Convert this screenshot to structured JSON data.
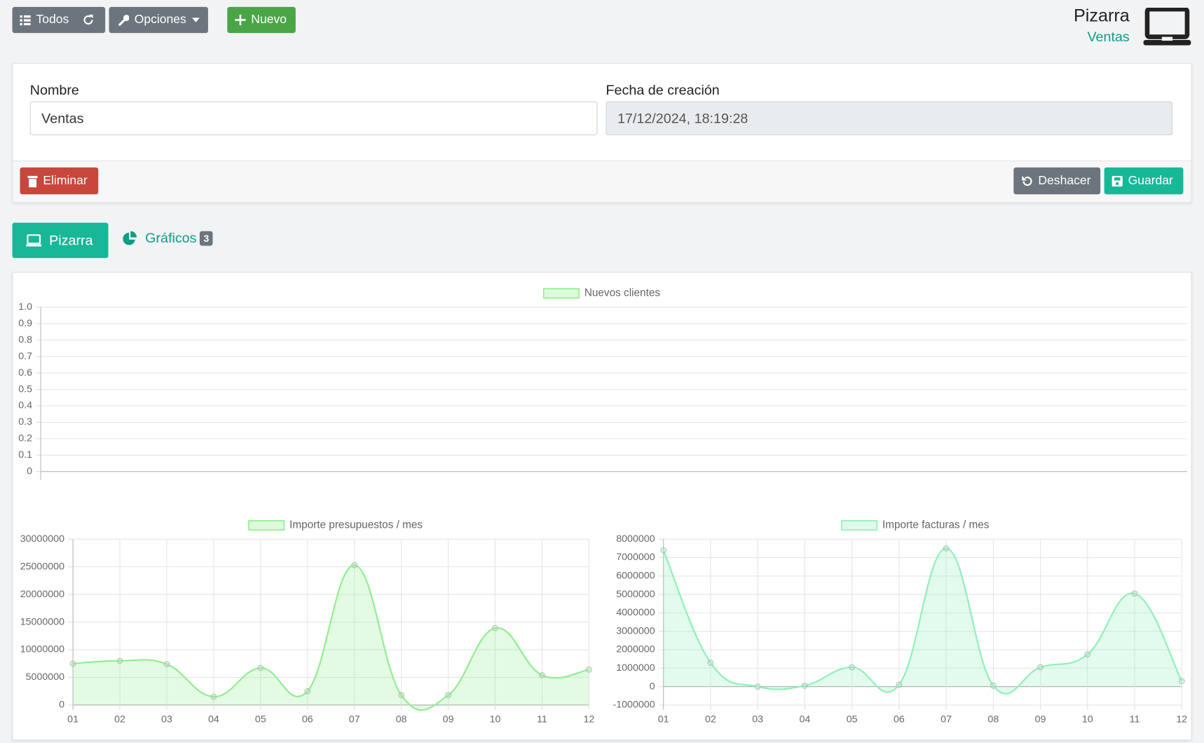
{
  "toolbar": {
    "all": "Todos",
    "options": "Opciones",
    "new": "Nuevo"
  },
  "header": {
    "title": "Pizarra",
    "subtitle": "Ventas"
  },
  "form": {
    "name_label": "Nombre",
    "name_value": "Ventas",
    "date_label": "Fecha de creación",
    "date_value": "17/12/2024, 18:19:28"
  },
  "actions": {
    "delete": "Eliminar",
    "undo": "Deshacer",
    "save": "Guardar"
  },
  "tabs": {
    "board": "Pizarra",
    "charts": "Gráficos",
    "charts_count": 3
  },
  "chart_data": [
    {
      "type": "line",
      "categories": [],
      "series": [
        {
          "name": "Nuevos clientes",
          "color": "#90ee90",
          "values": []
        }
      ],
      "ylim": [
        0,
        1
      ],
      "yticks": [
        0,
        0.1,
        0.2,
        0.3,
        0.4,
        0.5,
        0.6,
        0.7,
        0.8,
        0.9,
        {
          "value": 1,
          "label": "1.0"
        }
      ],
      "grid": true,
      "smooth": true,
      "fill": true
    },
    {
      "type": "line",
      "categories": [
        "01",
        "02",
        "03",
        "04",
        "05",
        "06",
        "07",
        "08",
        "09",
        "10",
        "11",
        "12"
      ],
      "series": [
        {
          "name": "Importe presupuestos / mes",
          "color": "#90ee90",
          "values": [
            7500000,
            8000000,
            7400000,
            1500000,
            6700000,
            2500000,
            25300000,
            1800000,
            1800000,
            13900000,
            5400000,
            6400000
          ]
        }
      ],
      "ylim": [
        0,
        30000000
      ],
      "yticks": [
        0,
        5000000,
        10000000,
        15000000,
        20000000,
        25000000,
        30000000
      ],
      "grid": true,
      "smooth": true,
      "fill": true
    },
    {
      "type": "line",
      "categories": [
        "01",
        "02",
        "03",
        "04",
        "05",
        "06",
        "07",
        "08",
        "09",
        "10",
        "11",
        "12"
      ],
      "series": [
        {
          "name": "Importe facturas / mes",
          "color": "#90f0b8",
          "values": [
            7400000,
            1300000,
            0,
            50000,
            1050000,
            100000,
            7500000,
            50000,
            1050000,
            1750000,
            5050000,
            300000
          ]
        }
      ],
      "ylim": [
        -1000000,
        8000000
      ],
      "yticks": [
        -1000000,
        0,
        1000000,
        2000000,
        3000000,
        4000000,
        5000000,
        6000000,
        7000000,
        8000000
      ],
      "grid": true,
      "smooth": true,
      "fill": true
    }
  ]
}
